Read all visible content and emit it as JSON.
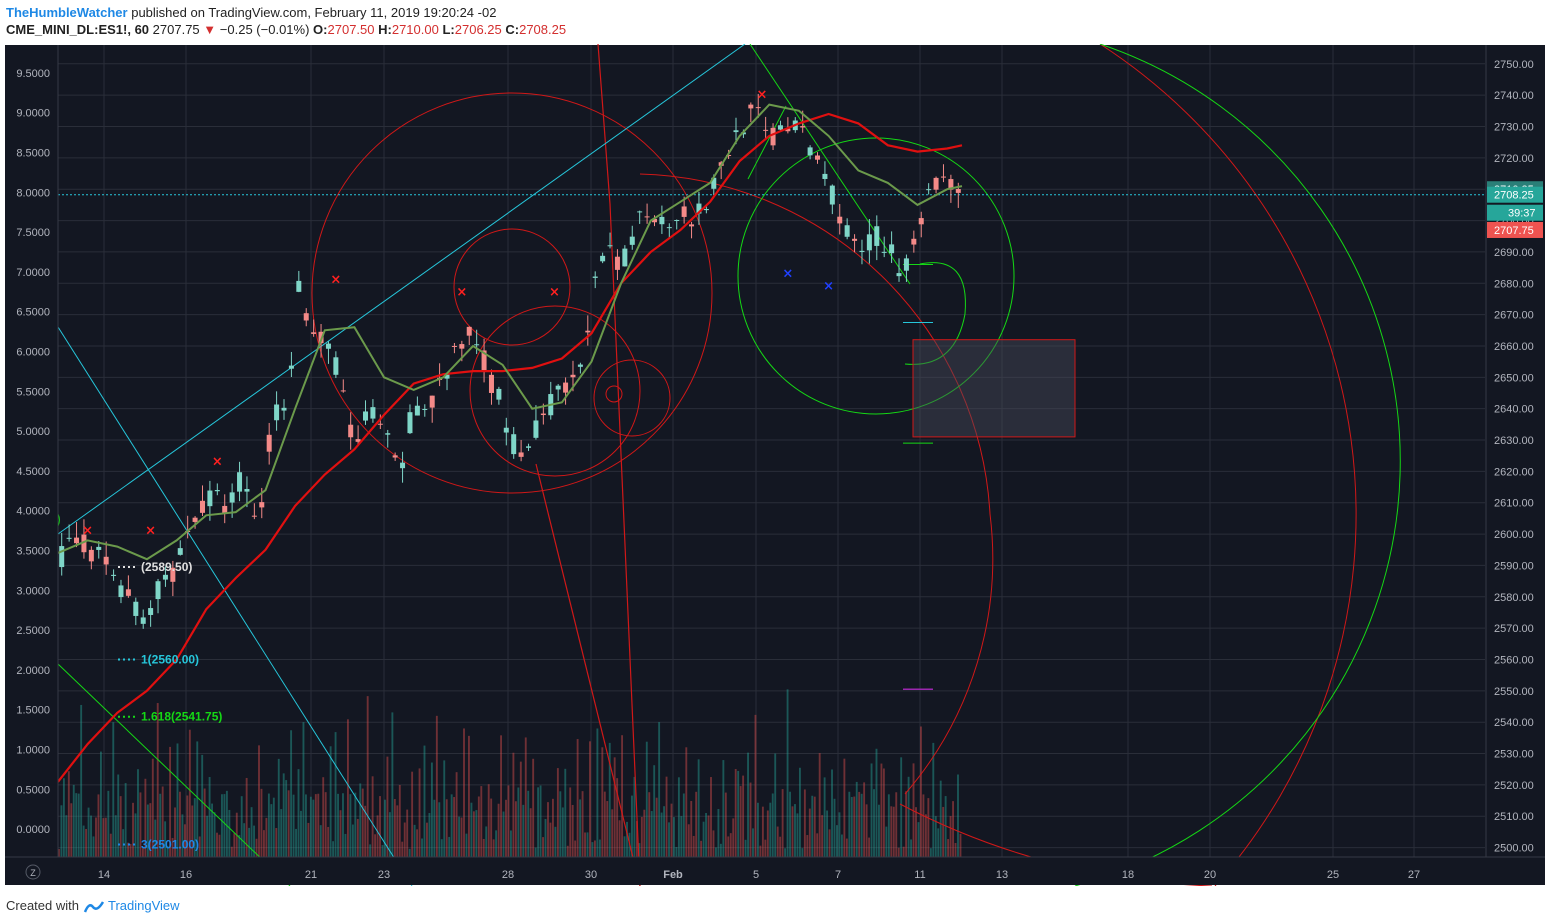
{
  "header": {
    "author": "TheHumbleWatcher",
    "published": "published on TradingView.com, February 11, 2019 19:20:24 -02",
    "symbol": "CME_MINI_DL:ES1!, 60",
    "last": "2707.75",
    "change": "−0.25 (−0.01%)",
    "o_label": "O:",
    "o_value": "2707.50",
    "h_label": "H:",
    "h_value": "2710.00",
    "l_label": "L:",
    "l_value": "2706.25",
    "c_label": "C:",
    "c_value": "2708.25"
  },
  "footer": {
    "created_with": "Created with",
    "brand": "TradingView"
  },
  "colors": {
    "background": "#131722",
    "grid": "#2a2e39",
    "up": "#26a69a",
    "down": "#ef5350",
    "ma_red": "#e01010",
    "ma_green": "#6b9a4b",
    "cyan": "#26c6da",
    "green": "#15d815",
    "price_label_up": "#26a69a",
    "price_label_down": "#ef5350"
  },
  "chart_data": {
    "type": "line",
    "title": "",
    "price_axis": {
      "ylim": [
        2497,
        2756
      ],
      "ticks": [
        "2750.00",
        "2740.00",
        "2730.00",
        "2720.00",
        "2710.00",
        "2700.00",
        "2690.00",
        "2680.00",
        "2670.00",
        "2660.00",
        "2650.00",
        "2640.00",
        "2630.00",
        "2620.00",
        "2610.00",
        "2600.00",
        "2590.00",
        "2580.00",
        "2570.00",
        "2560.00",
        "2550.00",
        "2540.00",
        "2530.00",
        "2520.00",
        "2510.00",
        "2500.00"
      ]
    },
    "left_axis": {
      "ylim": [
        -0.35,
        9.85
      ],
      "ticks": [
        "9.5000",
        "9.0000",
        "8.5000",
        "8.0000",
        "7.5000",
        "7.0000",
        "6.5000",
        "6.0000",
        "5.5000",
        "5.0000",
        "4.5000",
        "4.0000",
        "3.5000",
        "3.0000",
        "2.5000",
        "2.0000",
        "1.5000",
        "1.0000",
        "0.5000",
        "0.0000"
      ]
    },
    "x_ticks": [
      "14",
      "16",
      "21",
      "23",
      "28",
      "30",
      "Feb",
      "5",
      "7",
      "11",
      "13",
      "18",
      "20",
      "25",
      "27"
    ],
    "price_path": [
      [
        0,
        2592
      ],
      [
        3,
        2598
      ],
      [
        6,
        2592
      ],
      [
        9,
        2582
      ],
      [
        11.5,
        2572
      ],
      [
        14,
        2585
      ],
      [
        16,
        2590
      ],
      [
        18,
        2605
      ],
      [
        21,
        2612
      ],
      [
        23,
        2608
      ],
      [
        25,
        2620
      ],
      [
        27,
        2600
      ],
      [
        29,
        2638
      ],
      [
        31,
        2645
      ],
      [
        32.5,
        2680
      ],
      [
        34,
        2665
      ],
      [
        36,
        2660
      ],
      [
        38,
        2652
      ],
      [
        40,
        2625
      ],
      [
        42,
        2640
      ],
      [
        44,
        2632
      ],
      [
        46,
        2618
      ],
      [
        48,
        2642
      ],
      [
        50,
        2640
      ],
      [
        52,
        2650
      ],
      [
        54,
        2658
      ],
      [
        56,
        2666
      ],
      [
        58,
        2652
      ],
      [
        60,
        2640
      ],
      [
        62,
        2625
      ],
      [
        64,
        2630
      ],
      [
        66,
        2640
      ],
      [
        68,
        2645
      ],
      [
        70,
        2648
      ],
      [
        72,
        2675
      ],
      [
        74,
        2690
      ],
      [
        76,
        2683
      ],
      [
        78,
        2700
      ],
      [
        80,
        2705
      ],
      [
        82,
        2698
      ],
      [
        84,
        2705
      ],
      [
        86,
        2700
      ],
      [
        88,
        2708
      ],
      [
        90,
        2720
      ],
      [
        92,
        2730
      ],
      [
        94,
        2735
      ],
      [
        96,
        2725
      ],
      [
        98,
        2732
      ],
      [
        100,
        2728
      ],
      [
        102,
        2722
      ],
      [
        104,
        2712
      ],
      [
        106,
        2700
      ],
      [
        108,
        2688
      ],
      [
        110,
        2696
      ],
      [
        112,
        2690
      ],
      [
        114,
        2684
      ],
      [
        116,
        2700
      ],
      [
        118,
        2710
      ],
      [
        120,
        2714
      ],
      [
        122,
        2707.75
      ]
    ],
    "ma_red": [
      [
        0,
        2521
      ],
      [
        4,
        2533
      ],
      [
        8,
        2543
      ],
      [
        12,
        2550
      ],
      [
        16,
        2560
      ],
      [
        20,
        2576
      ],
      [
        24,
        2586
      ],
      [
        28,
        2595
      ],
      [
        32,
        2609
      ],
      [
        36,
        2619
      ],
      [
        40,
        2627
      ],
      [
        44,
        2638
      ],
      [
        48,
        2648
      ],
      [
        52,
        2651
      ],
      [
        56,
        2652
      ],
      [
        60,
        2652
      ],
      [
        64,
        2653
      ],
      [
        68,
        2656
      ],
      [
        72,
        2664
      ],
      [
        76,
        2680
      ],
      [
        80,
        2690
      ],
      [
        84,
        2697
      ],
      [
        88,
        2706
      ],
      [
        92,
        2719
      ],
      [
        96,
        2727
      ],
      [
        100,
        2731
      ],
      [
        104,
        2734
      ],
      [
        108,
        2731
      ],
      [
        112,
        2724
      ],
      [
        116,
        2722
      ],
      [
        120,
        2723
      ],
      [
        122,
        2724
      ]
    ],
    "ma_green": [
      [
        0,
        2594
      ],
      [
        4,
        2598
      ],
      [
        8,
        2596
      ],
      [
        12,
        2592
      ],
      [
        16,
        2598
      ],
      [
        20,
        2606
      ],
      [
        24,
        2607
      ],
      [
        28,
        2614
      ],
      [
        32,
        2640
      ],
      [
        36,
        2665
      ],
      [
        40,
        2666
      ],
      [
        44,
        2650
      ],
      [
        48,
        2646
      ],
      [
        52,
        2650
      ],
      [
        56,
        2660
      ],
      [
        60,
        2654
      ],
      [
        64,
        2640
      ],
      [
        68,
        2642
      ],
      [
        72,
        2655
      ],
      [
        76,
        2680
      ],
      [
        80,
        2700
      ],
      [
        84,
        2706
      ],
      [
        88,
        2712
      ],
      [
        92,
        2727
      ],
      [
        96,
        2737
      ],
      [
        100,
        2735
      ],
      [
        104,
        2727
      ],
      [
        108,
        2716
      ],
      [
        112,
        2712
      ],
      [
        116,
        2705
      ],
      [
        120,
        2710
      ],
      [
        122,
        2711
      ]
    ],
    "markers_red": [
      [
        4,
        2601
      ],
      [
        12.5,
        2601
      ],
      [
        21.5,
        2623
      ],
      [
        37.5,
        2681
      ],
      [
        54.5,
        2677
      ],
      [
        67,
        2677
      ],
      [
        95,
        2740
      ]
    ],
    "markers_blue": [
      [
        98.5,
        2683
      ],
      [
        104,
        2679
      ]
    ],
    "fib_levels": [
      {
        "label": "(2589.50)",
        "value": 2589.5
      },
      {
        "label": "1(2560.00)",
        "value": 2560
      },
      {
        "label": "1.618(2541.75)",
        "value": 2541.75
      },
      {
        "label": "3(2501.00)",
        "value": 2501
      }
    ],
    "target_box": {
      "price_top": 2662,
      "price_bottom": 2631
    },
    "price_labels": [
      {
        "text": "2710.25",
        "price": 2710
      },
      {
        "text": "2708.25",
        "price": 2708.25
      },
      {
        "text": "39:37",
        "price": 2702.5
      },
      {
        "text": "2707.75",
        "price": 2697
      }
    ],
    "grid": true,
    "legend": "none"
  }
}
